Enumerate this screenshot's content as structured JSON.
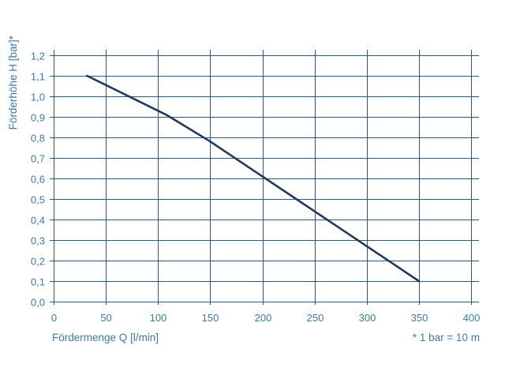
{
  "chart_data": {
    "type": "line",
    "xlabel": "Fördermenge Q [l/min]",
    "ylabel": "Förderhöhe H [bar]*",
    "note": "* 1 bar = 10 m",
    "xlim": [
      0,
      400
    ],
    "ylim": [
      0,
      1.2
    ],
    "x_ticks": [
      "0",
      "50",
      "100",
      "150",
      "200",
      "250",
      "300",
      "350",
      "400"
    ],
    "y_ticks": [
      "0,0",
      "0,1",
      "0,2",
      "0,3",
      "0,4",
      "0,5",
      "0,6",
      "0,7",
      "0,8",
      "0,9",
      "1,0",
      "1,1",
      "1,2"
    ],
    "grid": true,
    "series": [
      {
        "x": [
          32,
          108,
          150,
          200,
          250,
          300,
          350
        ],
        "y": [
          1.1,
          0.91,
          0.78,
          0.61,
          0.44,
          0.27,
          0.1
        ],
        "color": "#1f3a5c"
      }
    ]
  }
}
